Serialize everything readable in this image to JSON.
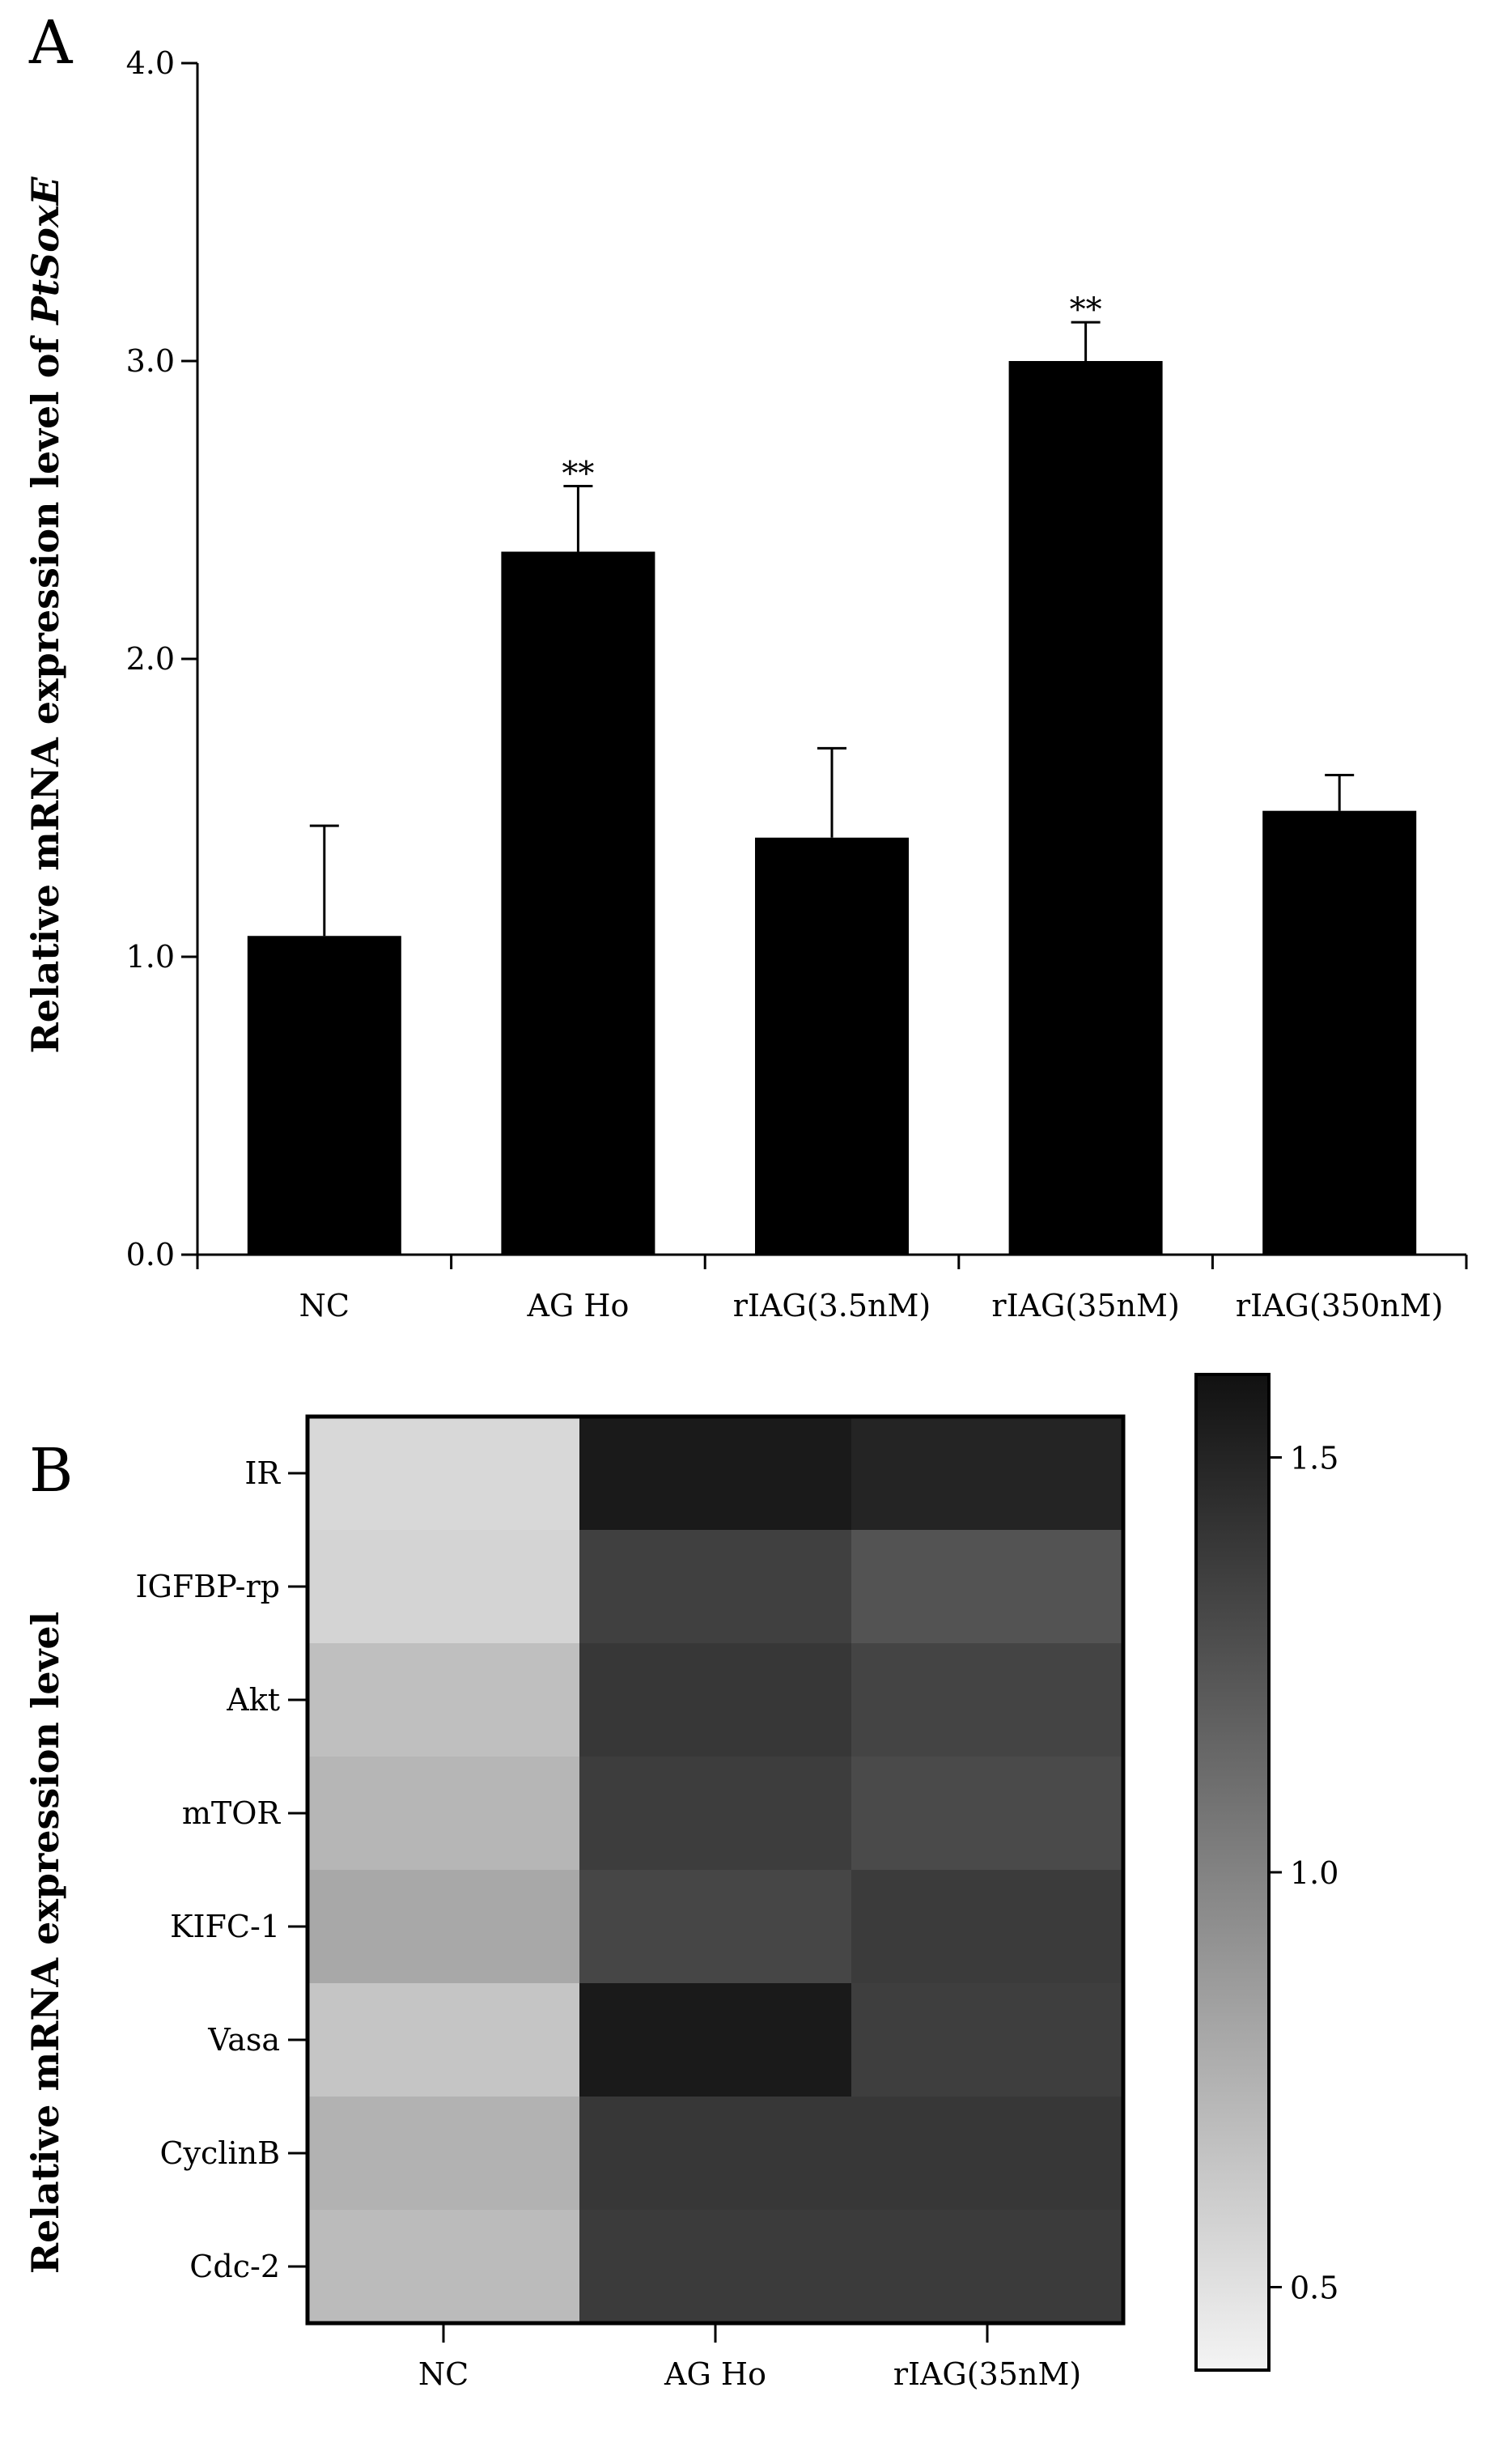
{
  "panel_a_letter": "A",
  "panel_b_letter": "B",
  "chart_data": [
    {
      "type": "bar",
      "panel": "A",
      "ylabel_prefix": "Relative mRNA expression level of ",
      "ylabel_gene": "PtSoxE",
      "categories": [
        "NC",
        "AG Ho",
        "rIAG(3.5nM)",
        "rIAG(35nM)",
        "rIAG(350nM)"
      ],
      "values": [
        1.07,
        2.36,
        1.4,
        3.0,
        1.49
      ],
      "errors": [
        0.37,
        0.22,
        0.3,
        0.13,
        0.12
      ],
      "significance": [
        "",
        "**",
        "",
        "**",
        ""
      ],
      "ylim": [
        0,
        4
      ],
      "yticks": [
        0,
        1,
        2,
        3,
        4
      ],
      "ytick_labels": [
        "0.0",
        "1.0",
        "2.0",
        "3.0",
        "4.0"
      ],
      "bar_color": "#000000"
    },
    {
      "type": "heatmap",
      "panel": "B",
      "ylabel": "Relative mRNA expression level",
      "rows": [
        "IR",
        "IGFBP-rp",
        "Akt",
        "mTOR",
        "KIFC-1",
        "Vasa",
        "CyclinB",
        "Cdc-2"
      ],
      "columns": [
        "NC",
        "AG Ho",
        "rIAG(35nM)"
      ],
      "values": [
        [
          0.55,
          1.55,
          1.5
        ],
        [
          0.57,
          1.35,
          1.25
        ],
        [
          0.68,
          1.4,
          1.33
        ],
        [
          0.73,
          1.37,
          1.3
        ],
        [
          0.8,
          1.32,
          1.38
        ],
        [
          0.65,
          1.55,
          1.36
        ],
        [
          0.75,
          1.4,
          1.4
        ],
        [
          0.7,
          1.38,
          1.38
        ]
      ],
      "colorbar": {
        "min": 0.4,
        "max": 1.6,
        "ticks": [
          0.5,
          1.0,
          1.5
        ],
        "tick_labels": [
          "0.5",
          "1.0",
          "1.5"
        ],
        "low_color": "#f4f4f4",
        "high_color": "#111111"
      }
    }
  ]
}
